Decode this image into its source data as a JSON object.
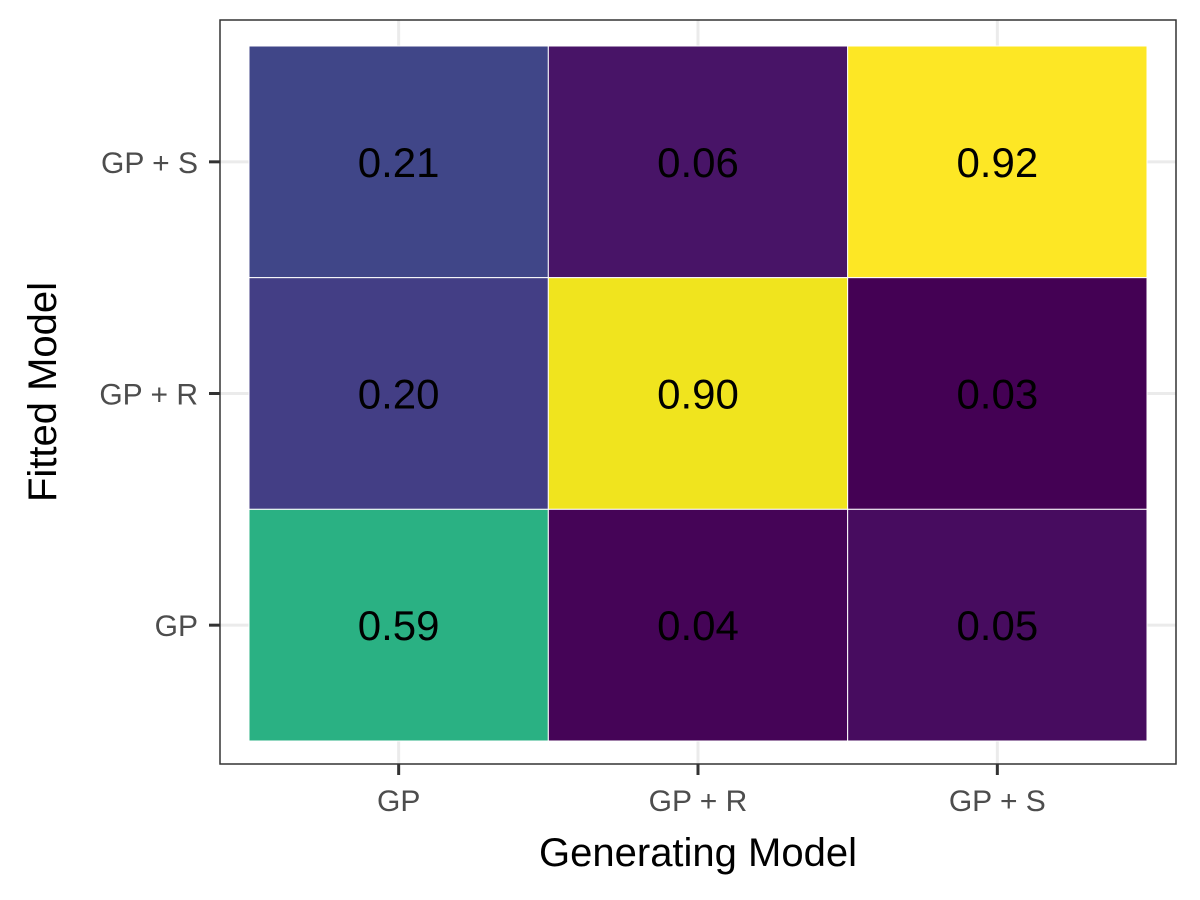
{
  "chart_data": {
    "type": "heatmap",
    "title": "",
    "xlabel": "Generating Model",
    "ylabel": "Fitted Model",
    "x_categories": [
      "GP",
      "GP + R",
      "GP + S"
    ],
    "y_categories": [
      "GP",
      "GP + R",
      "GP + S"
    ],
    "grid": true,
    "legend": "none",
    "colormap": "viridis",
    "value_range": [
      0,
      1
    ],
    "cells": [
      {
        "x": "GP",
        "y": "GP + S",
        "value": 0.21,
        "label": "0.21",
        "color": "#404688"
      },
      {
        "x": "GP + R",
        "y": "GP + S",
        "value": 0.06,
        "label": "0.06",
        "color": "#481467"
      },
      {
        "x": "GP + S",
        "y": "GP + S",
        "value": 0.92,
        "label": "0.92",
        "color": "#fde725"
      },
      {
        "x": "GP",
        "y": "GP + R",
        "value": 0.2,
        "label": "0.20",
        "color": "#433e85"
      },
      {
        "x": "GP + R",
        "y": "GP + R",
        "value": 0.9,
        "label": "0.90",
        "color": "#f0e41e"
      },
      {
        "x": "GP + S",
        "y": "GP + R",
        "value": 0.03,
        "label": "0.03",
        "color": "#440154"
      },
      {
        "x": "GP",
        "y": "GP",
        "value": 0.59,
        "label": "0.59",
        "color": "#2ab183"
      },
      {
        "x": "GP + R",
        "y": "GP",
        "value": 0.04,
        "label": "0.04",
        "color": "#450457"
      },
      {
        "x": "GP + S",
        "y": "GP",
        "value": 0.05,
        "label": "0.05",
        "color": "#470c5f"
      }
    ]
  }
}
